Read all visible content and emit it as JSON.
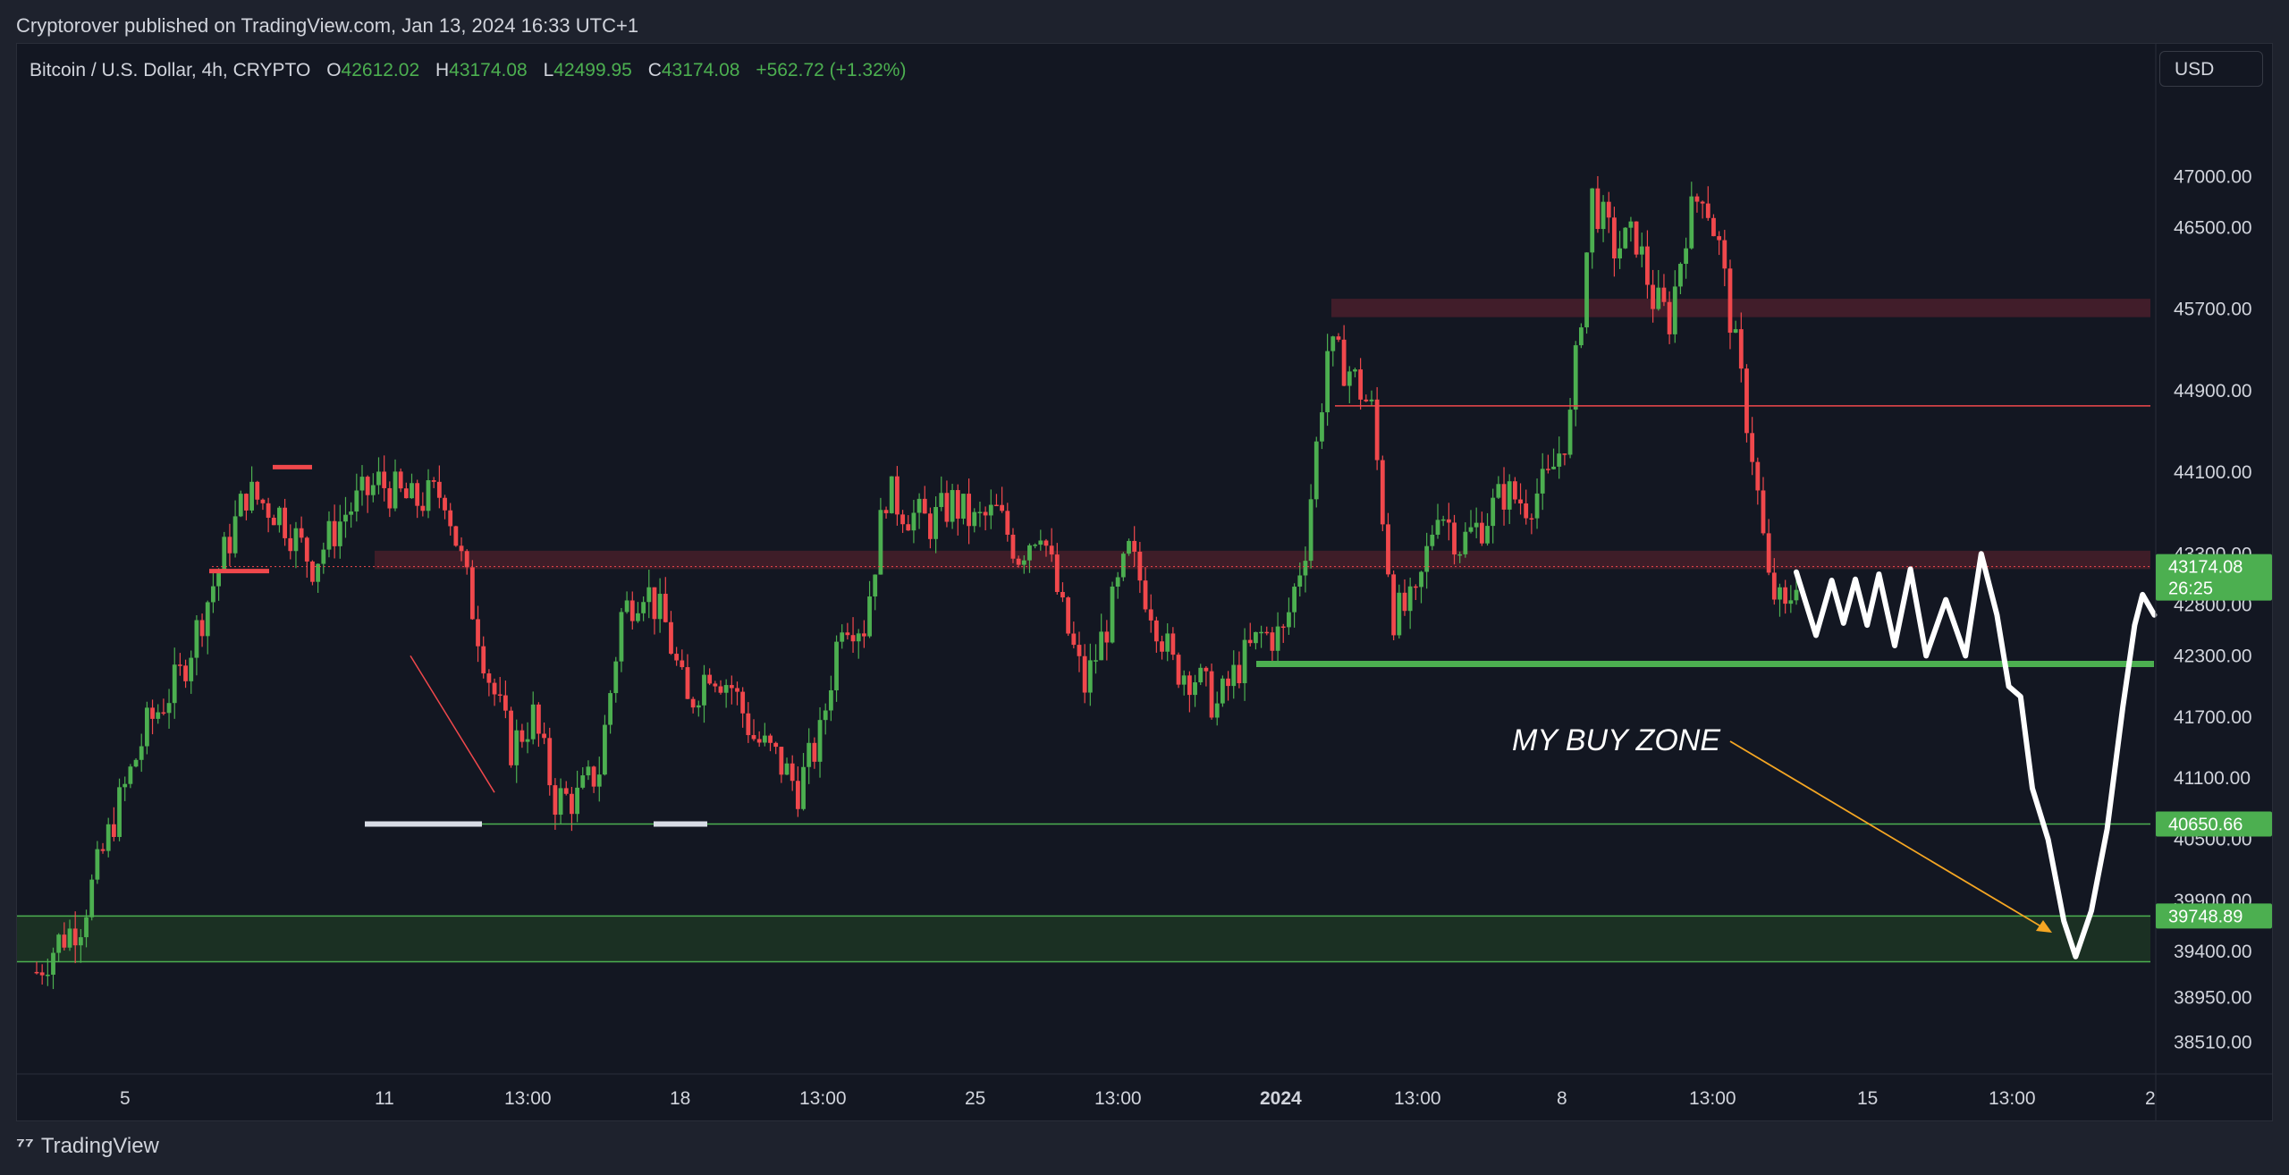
{
  "publish_line": "Cryptorover published on TradingView.com, Jan 13, 2024 16:33 UTC+1",
  "legend": {
    "symbol": "Bitcoin / U.S. Dollar, 4h, CRYPTO",
    "o_label": "O",
    "o_value": "42612.02",
    "h_label": "H",
    "h_value": "43174.08",
    "l_label": "L",
    "l_value": "42499.95",
    "c_label": "C",
    "c_value": "43174.08",
    "change": "+562.72 (+1.32%)"
  },
  "currency_button": "USD",
  "footer_logo_text": "TradingView",
  "colors": {
    "up": "#4caf50",
    "down": "#f0484c",
    "background": "#131722",
    "resistance_zone": "#4a1f2b",
    "buy_zone": "#1d3324",
    "arrow": "#f5a623"
  },
  "chart_data": {
    "type": "candlestick",
    "title": "Bitcoin / U.S. Dollar, 4h, CRYPTO",
    "ylim": [
      38200,
      48300
    ],
    "y_ticks": [
      47000,
      46500,
      45700,
      44900,
      44100,
      43300,
      42800,
      42300,
      41700,
      41100,
      40500,
      39900,
      39400,
      38950,
      38510
    ],
    "y_tick_labels": [
      "47000.00",
      "46500.00",
      "45700.00",
      "44900.00",
      "44100.00",
      "43300.00",
      "42800.00",
      "42300.00",
      "41700.00",
      "41100.00",
      "40500.00",
      "39900.00",
      "39400.00",
      "38950.00",
      "38510.00"
    ],
    "x_ticks": [
      {
        "label": "5",
        "bold": false
      },
      {
        "label": "11",
        "bold": false
      },
      {
        "label": "13:00",
        "bold": false
      },
      {
        "label": "18",
        "bold": false
      },
      {
        "label": "13:00",
        "bold": false
      },
      {
        "label": "25",
        "bold": false
      },
      {
        "label": "13:00",
        "bold": false
      },
      {
        "label": "2024",
        "bold": true
      },
      {
        "label": "13:00",
        "bold": false
      },
      {
        "label": "8",
        "bold": false
      },
      {
        "label": "13:00",
        "bold": false
      },
      {
        "label": "15",
        "bold": false
      },
      {
        "label": "13:00",
        "bold": false
      },
      {
        "label": "2",
        "bold": false
      }
    ],
    "price_tags": [
      {
        "value": "43174.08",
        "sub": "26:25",
        "price": 43174.08,
        "color": "#4caf50"
      },
      {
        "value": "40650.66",
        "sub": "",
        "price": 40650.66,
        "color": "#4caf50"
      },
      {
        "value": "39748.89",
        "sub": "",
        "price": 39748.89,
        "color": "#4caf50"
      }
    ],
    "levels": {
      "resistance_zone_top": 45800,
      "resistance_zone_bottom": 45620,
      "resistance_zone2_top": 43330,
      "resistance_zone2_bottom": 43150,
      "red_line": 44750,
      "green_support": 42220,
      "white_support": 40650,
      "buy_zone_top": 39748,
      "buy_zone_bottom": 39300
    },
    "annotation": "MY BUY ZONE",
    "candle_count": 290,
    "path_keypoints": [
      {
        "t": 0,
        "p": 39200
      },
      {
        "t": 4,
        "p": 39500
      },
      {
        "t": 8,
        "p": 39700
      },
      {
        "t": 14,
        "p": 40700
      },
      {
        "t": 20,
        "p": 41600
      },
      {
        "t": 26,
        "p": 42100
      },
      {
        "t": 32,
        "p": 43000
      },
      {
        "t": 38,
        "p": 43900
      },
      {
        "t": 44,
        "p": 43700
      },
      {
        "t": 50,
        "p": 43200
      },
      {
        "t": 56,
        "p": 43700
      },
      {
        "t": 62,
        "p": 44000
      },
      {
        "t": 68,
        "p": 43800
      },
      {
        "t": 74,
        "p": 43900
      },
      {
        "t": 78,
        "p": 43000
      },
      {
        "t": 82,
        "p": 42100
      },
      {
        "t": 86,
        "p": 41400
      },
      {
        "t": 90,
        "p": 41700
      },
      {
        "t": 94,
        "p": 40900
      },
      {
        "t": 98,
        "p": 40900
      },
      {
        "t": 102,
        "p": 41200
      },
      {
        "t": 106,
        "p": 42700
      },
      {
        "t": 110,
        "p": 43000
      },
      {
        "t": 114,
        "p": 42600
      },
      {
        "t": 118,
        "p": 41800
      },
      {
        "t": 122,
        "p": 42200
      },
      {
        "t": 126,
        "p": 42000
      },
      {
        "t": 130,
        "p": 41500
      },
      {
        "t": 134,
        "p": 41300
      },
      {
        "t": 138,
        "p": 41000
      },
      {
        "t": 142,
        "p": 41500
      },
      {
        "t": 146,
        "p": 42700
      },
      {
        "t": 150,
        "p": 42600
      },
      {
        "t": 154,
        "p": 43900
      },
      {
        "t": 158,
        "p": 43700
      },
      {
        "t": 162,
        "p": 43600
      },
      {
        "t": 166,
        "p": 43800
      },
      {
        "t": 170,
        "p": 43600
      },
      {
        "t": 174,
        "p": 43700
      },
      {
        "t": 178,
        "p": 43300
      },
      {
        "t": 182,
        "p": 43600
      },
      {
        "t": 186,
        "p": 42700
      },
      {
        "t": 190,
        "p": 42000
      },
      {
        "t": 194,
        "p": 42600
      },
      {
        "t": 198,
        "p": 43300
      },
      {
        "t": 202,
        "p": 42800
      },
      {
        "t": 206,
        "p": 42200
      },
      {
        "t": 210,
        "p": 42100
      },
      {
        "t": 214,
        "p": 41800
      },
      {
        "t": 218,
        "p": 42200
      },
      {
        "t": 222,
        "p": 42500
      },
      {
        "t": 226,
        "p": 42500
      },
      {
        "t": 230,
        "p": 43400
      },
      {
        "t": 234,
        "p": 45300
      },
      {
        "t": 238,
        "p": 45100
      },
      {
        "t": 242,
        "p": 44700
      },
      {
        "t": 246,
        "p": 42700
      },
      {
        "t": 250,
        "p": 42800
      },
      {
        "t": 254,
        "p": 43800
      },
      {
        "t": 258,
        "p": 43400
      },
      {
        "t": 262,
        "p": 43600
      },
      {
        "t": 266,
        "p": 43900
      },
      {
        "t": 270,
        "p": 43800
      },
      {
        "t": 274,
        "p": 44000
      },
      {
        "t": 278,
        "p": 44600
      },
      {
        "t": 282,
        "p": 46800
      },
      {
        "t": 286,
        "p": 46300
      },
      {
        "t": 290,
        "p": 46400
      }
    ],
    "tail_keypoints": [
      {
        "t": 0,
        "p": 46400
      },
      {
        "t": 3,
        "p": 45800
      },
      {
        "t": 6,
        "p": 45600
      },
      {
        "t": 9,
        "p": 46500
      },
      {
        "t": 12,
        "p": 46900
      },
      {
        "t": 15,
        "p": 46300
      },
      {
        "t": 18,
        "p": 45300
      },
      {
        "t": 21,
        "p": 44300
      },
      {
        "t": 24,
        "p": 43000
      },
      {
        "t": 27,
        "p": 42700
      },
      {
        "t": 29,
        "p": 43100
      }
    ],
    "projection_path": [
      {
        "t": 0,
        "p": 43120
      },
      {
        "t": 5,
        "p": 42500
      },
      {
        "t": 9,
        "p": 43040
      },
      {
        "t": 12,
        "p": 42620
      },
      {
        "t": 15,
        "p": 43050
      },
      {
        "t": 18,
        "p": 42600
      },
      {
        "t": 21,
        "p": 43100
      },
      {
        "t": 25,
        "p": 42400
      },
      {
        "t": 29,
        "p": 43150
      },
      {
        "t": 33,
        "p": 42300
      },
      {
        "t": 38,
        "p": 42850
      },
      {
        "t": 43,
        "p": 42300
      },
      {
        "t": 47,
        "p": 43300
      },
      {
        "t": 51,
        "p": 42700
      },
      {
        "t": 54,
        "p": 42000
      },
      {
        "t": 57,
        "p": 41900
      },
      {
        "t": 60,
        "p": 41000
      },
      {
        "t": 64,
        "p": 40500
      },
      {
        "t": 68,
        "p": 39700
      },
      {
        "t": 71,
        "p": 39350
      },
      {
        "t": 75,
        "p": 39800
      },
      {
        "t": 79,
        "p": 40600
      },
      {
        "t": 83,
        "p": 41800
      },
      {
        "t": 86,
        "p": 42600
      },
      {
        "t": 88,
        "p": 42900
      },
      {
        "t": 91,
        "p": 42700
      }
    ]
  }
}
